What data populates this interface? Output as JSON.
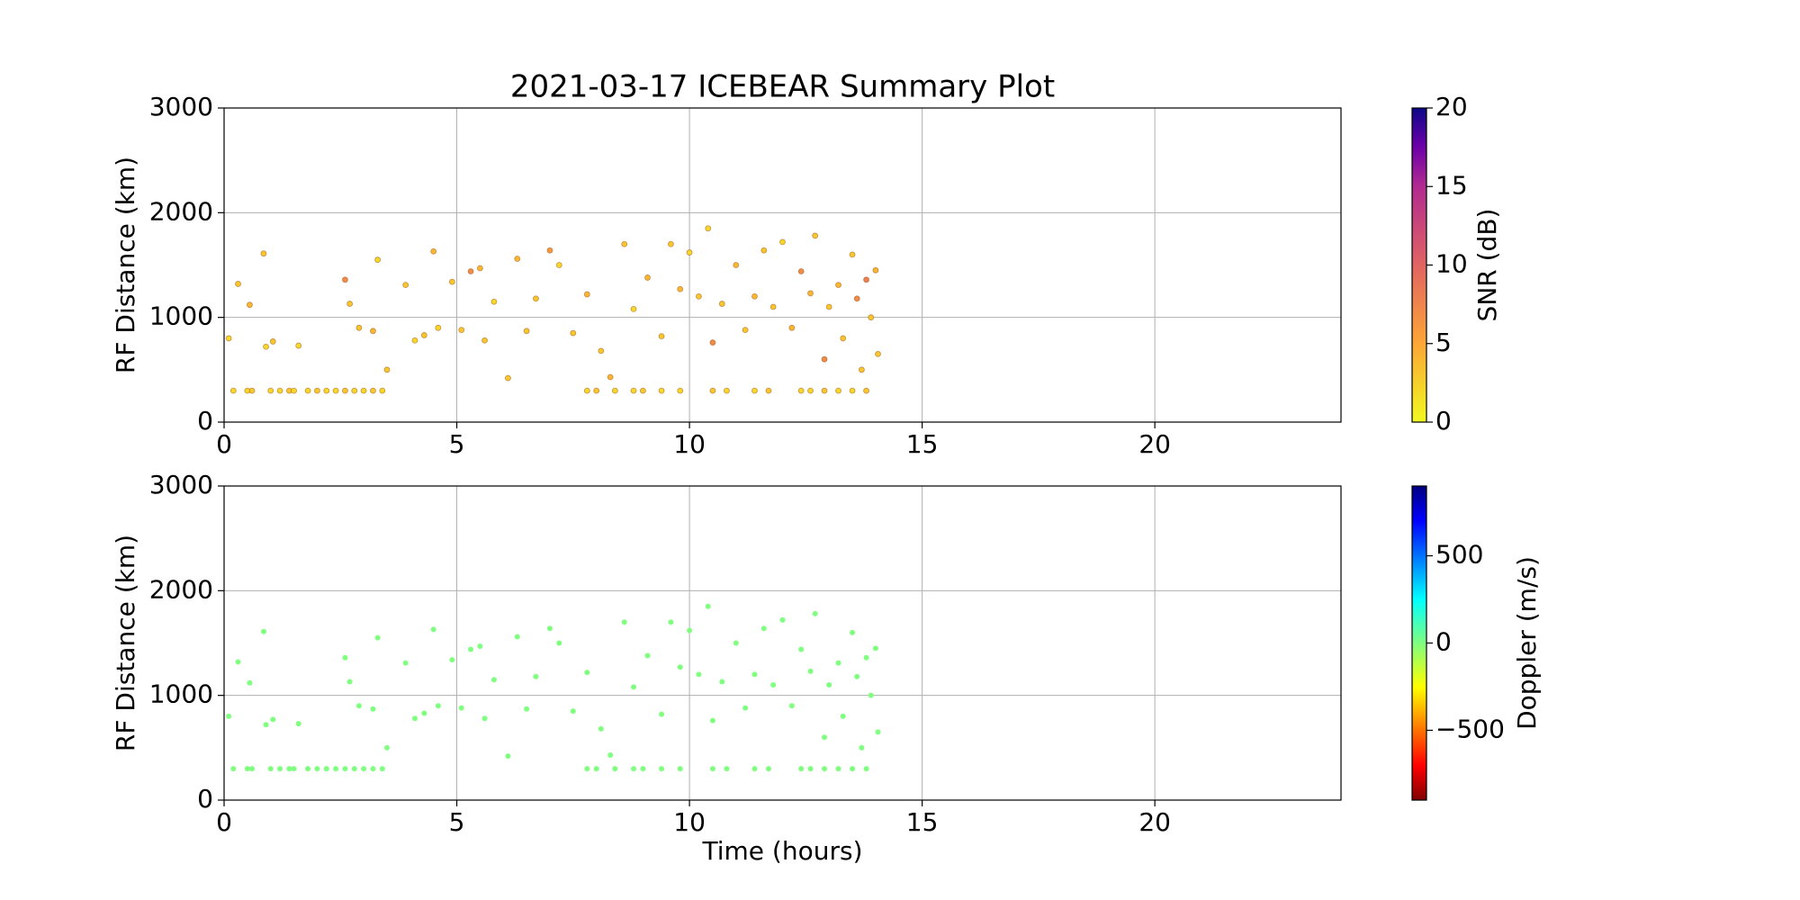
{
  "chart_data": [
    {
      "type": "scatter",
      "title": "2021-03-17 ICEBEAR Summary Plot",
      "ylabel": "RF Distance (km)",
      "colorbar_label": "SNR (dB)",
      "colormap": "plasma_r",
      "clim": [
        0,
        20
      ],
      "cticks": [
        0,
        5,
        10,
        15,
        20
      ],
      "xlim": [
        0,
        24
      ],
      "xticks": [
        0,
        5,
        10,
        15,
        20
      ],
      "ylim": [
        0,
        3000
      ],
      "yticks": [
        0,
        1000,
        2000,
        3000
      ],
      "grid": true,
      "x": [
        0.2,
        0.5,
        0.6,
        1.0,
        1.2,
        1.4,
        1.5,
        1.8,
        2.0,
        2.2,
        2.4,
        2.6,
        2.8,
        3.0,
        3.2,
        3.4,
        7.8,
        8.0,
        8.4,
        8.8,
        9.0,
        9.4,
        9.8,
        10.5,
        10.8,
        11.4,
        11.7,
        12.4,
        12.6,
        12.9,
        13.2,
        13.5,
        13.8,
        0.1,
        0.3,
        0.55,
        0.85,
        0.9,
        1.05,
        1.6,
        2.6,
        2.7,
        2.9,
        3.2,
        3.3,
        3.5,
        3.9,
        4.1,
        4.3,
        4.5,
        4.6,
        4.9,
        5.1,
        5.3,
        5.5,
        5.6,
        5.8,
        6.1,
        6.3,
        6.5,
        6.7,
        7.0,
        7.2,
        7.5,
        7.8,
        8.1,
        8.3,
        8.6,
        8.8,
        9.1,
        9.4,
        9.6,
        9.8,
        10.0,
        10.2,
        10.4,
        10.5,
        10.7,
        11.0,
        11.2,
        11.4,
        11.6,
        11.8,
        12.0,
        12.2,
        12.4,
        12.6,
        12.7,
        12.9,
        13.0,
        13.2,
        13.3,
        13.5,
        13.6,
        13.7,
        13.8,
        13.9,
        14.0,
        14.05
      ],
      "y": [
        300,
        300,
        300,
        300,
        300,
        300,
        300,
        300,
        300,
        300,
        300,
        300,
        300,
        300,
        300,
        300,
        300,
        300,
        300,
        300,
        300,
        300,
        300,
        300,
        300,
        300,
        300,
        300,
        300,
        300,
        300,
        300,
        300,
        800,
        1320,
        1120,
        1610,
        720,
        770,
        730,
        1360,
        1130,
        900,
        870,
        1550,
        500,
        1310,
        780,
        830,
        1630,
        900,
        1340,
        880,
        1440,
        1470,
        780,
        1150,
        420,
        1560,
        870,
        1180,
        1640,
        1500,
        850,
        1220,
        680,
        430,
        1700,
        1080,
        1380,
        820,
        1700,
        1270,
        1620,
        1200,
        1850,
        760,
        1130,
        1500,
        880,
        1200,
        1640,
        1100,
        1720,
        900,
        1440,
        1230,
        1780,
        600,
        1100,
        1310,
        800,
        1600,
        1180,
        500,
        1360,
        1000,
        1450,
        650
      ],
      "c": [
        2,
        2,
        3,
        2,
        2,
        3,
        2,
        2,
        3,
        2,
        2,
        3,
        2,
        2,
        3,
        2,
        2,
        3,
        2,
        2,
        3,
        2,
        2,
        3,
        2,
        2,
        3,
        2,
        2,
        3,
        2,
        2,
        3,
        2,
        3,
        4,
        3,
        2,
        3,
        2,
        7,
        3,
        3,
        4,
        2,
        3,
        3,
        2,
        3,
        4,
        2,
        3,
        3,
        7,
        4,
        3,
        2,
        3,
        4,
        3,
        3,
        6,
        2,
        3,
        4,
        3,
        4,
        3,
        2,
        4,
        3,
        3,
        4,
        2,
        3,
        2,
        7,
        3,
        4,
        3,
        4,
        3,
        3,
        2,
        4,
        7,
        4,
        3,
        7,
        3,
        4,
        3,
        3,
        7,
        3,
        8,
        3,
        4,
        3
      ]
    },
    {
      "type": "scatter",
      "ylabel": "RF Distance (km)",
      "xlabel": "Time (hours)",
      "colorbar_label": "Doppler (m/s)",
      "colormap": "jet_r",
      "clim": [
        -900,
        900
      ],
      "cticks": [
        {
          "value": -500,
          "label": "−500"
        },
        0,
        500
      ],
      "xlim": [
        0,
        24
      ],
      "xticks": [
        0,
        5,
        10,
        15,
        20
      ],
      "ylim": [
        0,
        3000
      ],
      "yticks": [
        0,
        1000,
        2000,
        3000
      ],
      "grid": true,
      "x": [
        0.2,
        0.5,
        0.6,
        1.0,
        1.2,
        1.4,
        1.5,
        1.8,
        2.0,
        2.2,
        2.4,
        2.6,
        2.8,
        3.0,
        3.2,
        3.4,
        7.8,
        8.0,
        8.4,
        8.8,
        9.0,
        9.4,
        9.8,
        10.5,
        10.8,
        11.4,
        11.7,
        12.4,
        12.6,
        12.9,
        13.2,
        13.5,
        13.8,
        0.1,
        0.3,
        0.55,
        0.85,
        0.9,
        1.05,
        1.6,
        2.6,
        2.7,
        2.9,
        3.2,
        3.3,
        3.5,
        3.9,
        4.1,
        4.3,
        4.5,
        4.6,
        4.9,
        5.1,
        5.3,
        5.5,
        5.6,
        5.8,
        6.1,
        6.3,
        6.5,
        6.7,
        7.0,
        7.2,
        7.5,
        7.8,
        8.1,
        8.3,
        8.6,
        8.8,
        9.1,
        9.4,
        9.6,
        9.8,
        10.0,
        10.2,
        10.4,
        10.5,
        10.7,
        11.0,
        11.2,
        11.4,
        11.6,
        11.8,
        12.0,
        12.2,
        12.4,
        12.6,
        12.7,
        12.9,
        13.0,
        13.2,
        13.3,
        13.5,
        13.6,
        13.7,
        13.8,
        13.9,
        14.0,
        14.05
      ],
      "y": [
        300,
        300,
        300,
        300,
        300,
        300,
        300,
        300,
        300,
        300,
        300,
        300,
        300,
        300,
        300,
        300,
        300,
        300,
        300,
        300,
        300,
        300,
        300,
        300,
        300,
        300,
        300,
        300,
        300,
        300,
        300,
        300,
        300,
        800,
        1320,
        1120,
        1610,
        720,
        770,
        730,
        1360,
        1130,
        900,
        870,
        1550,
        500,
        1310,
        780,
        830,
        1630,
        900,
        1340,
        880,
        1440,
        1470,
        780,
        1150,
        420,
        1560,
        870,
        1180,
        1640,
        1500,
        850,
        1220,
        680,
        430,
        1700,
        1080,
        1380,
        820,
        1700,
        1270,
        1620,
        1200,
        1850,
        760,
        1130,
        1500,
        880,
        1200,
        1640,
        1100,
        1720,
        900,
        1440,
        1230,
        1780,
        600,
        1100,
        1310,
        800,
        1600,
        1180,
        500,
        1360,
        1000,
        1450,
        650
      ],
      "c": [
        0,
        0,
        0,
        0,
        0,
        0,
        0,
        0,
        0,
        0,
        0,
        0,
        0,
        0,
        0,
        0,
        0,
        0,
        0,
        0,
        0,
        0,
        0,
        0,
        0,
        0,
        0,
        0,
        0,
        0,
        0,
        0,
        0,
        0,
        0,
        0,
        0,
        0,
        0,
        0,
        0,
        0,
        0,
        0,
        0,
        0,
        0,
        0,
        0,
        0,
        0,
        0,
        0,
        0,
        0,
        0,
        0,
        0,
        0,
        0,
        0,
        0,
        0,
        0,
        0,
        0,
        0,
        0,
        0,
        0,
        0,
        0,
        0,
        0,
        0,
        0,
        0,
        0,
        0,
        0,
        0,
        0,
        0,
        0,
        0,
        0,
        0,
        0,
        0,
        0,
        0,
        0,
        0,
        0,
        0,
        0,
        0,
        0,
        0
      ]
    }
  ]
}
